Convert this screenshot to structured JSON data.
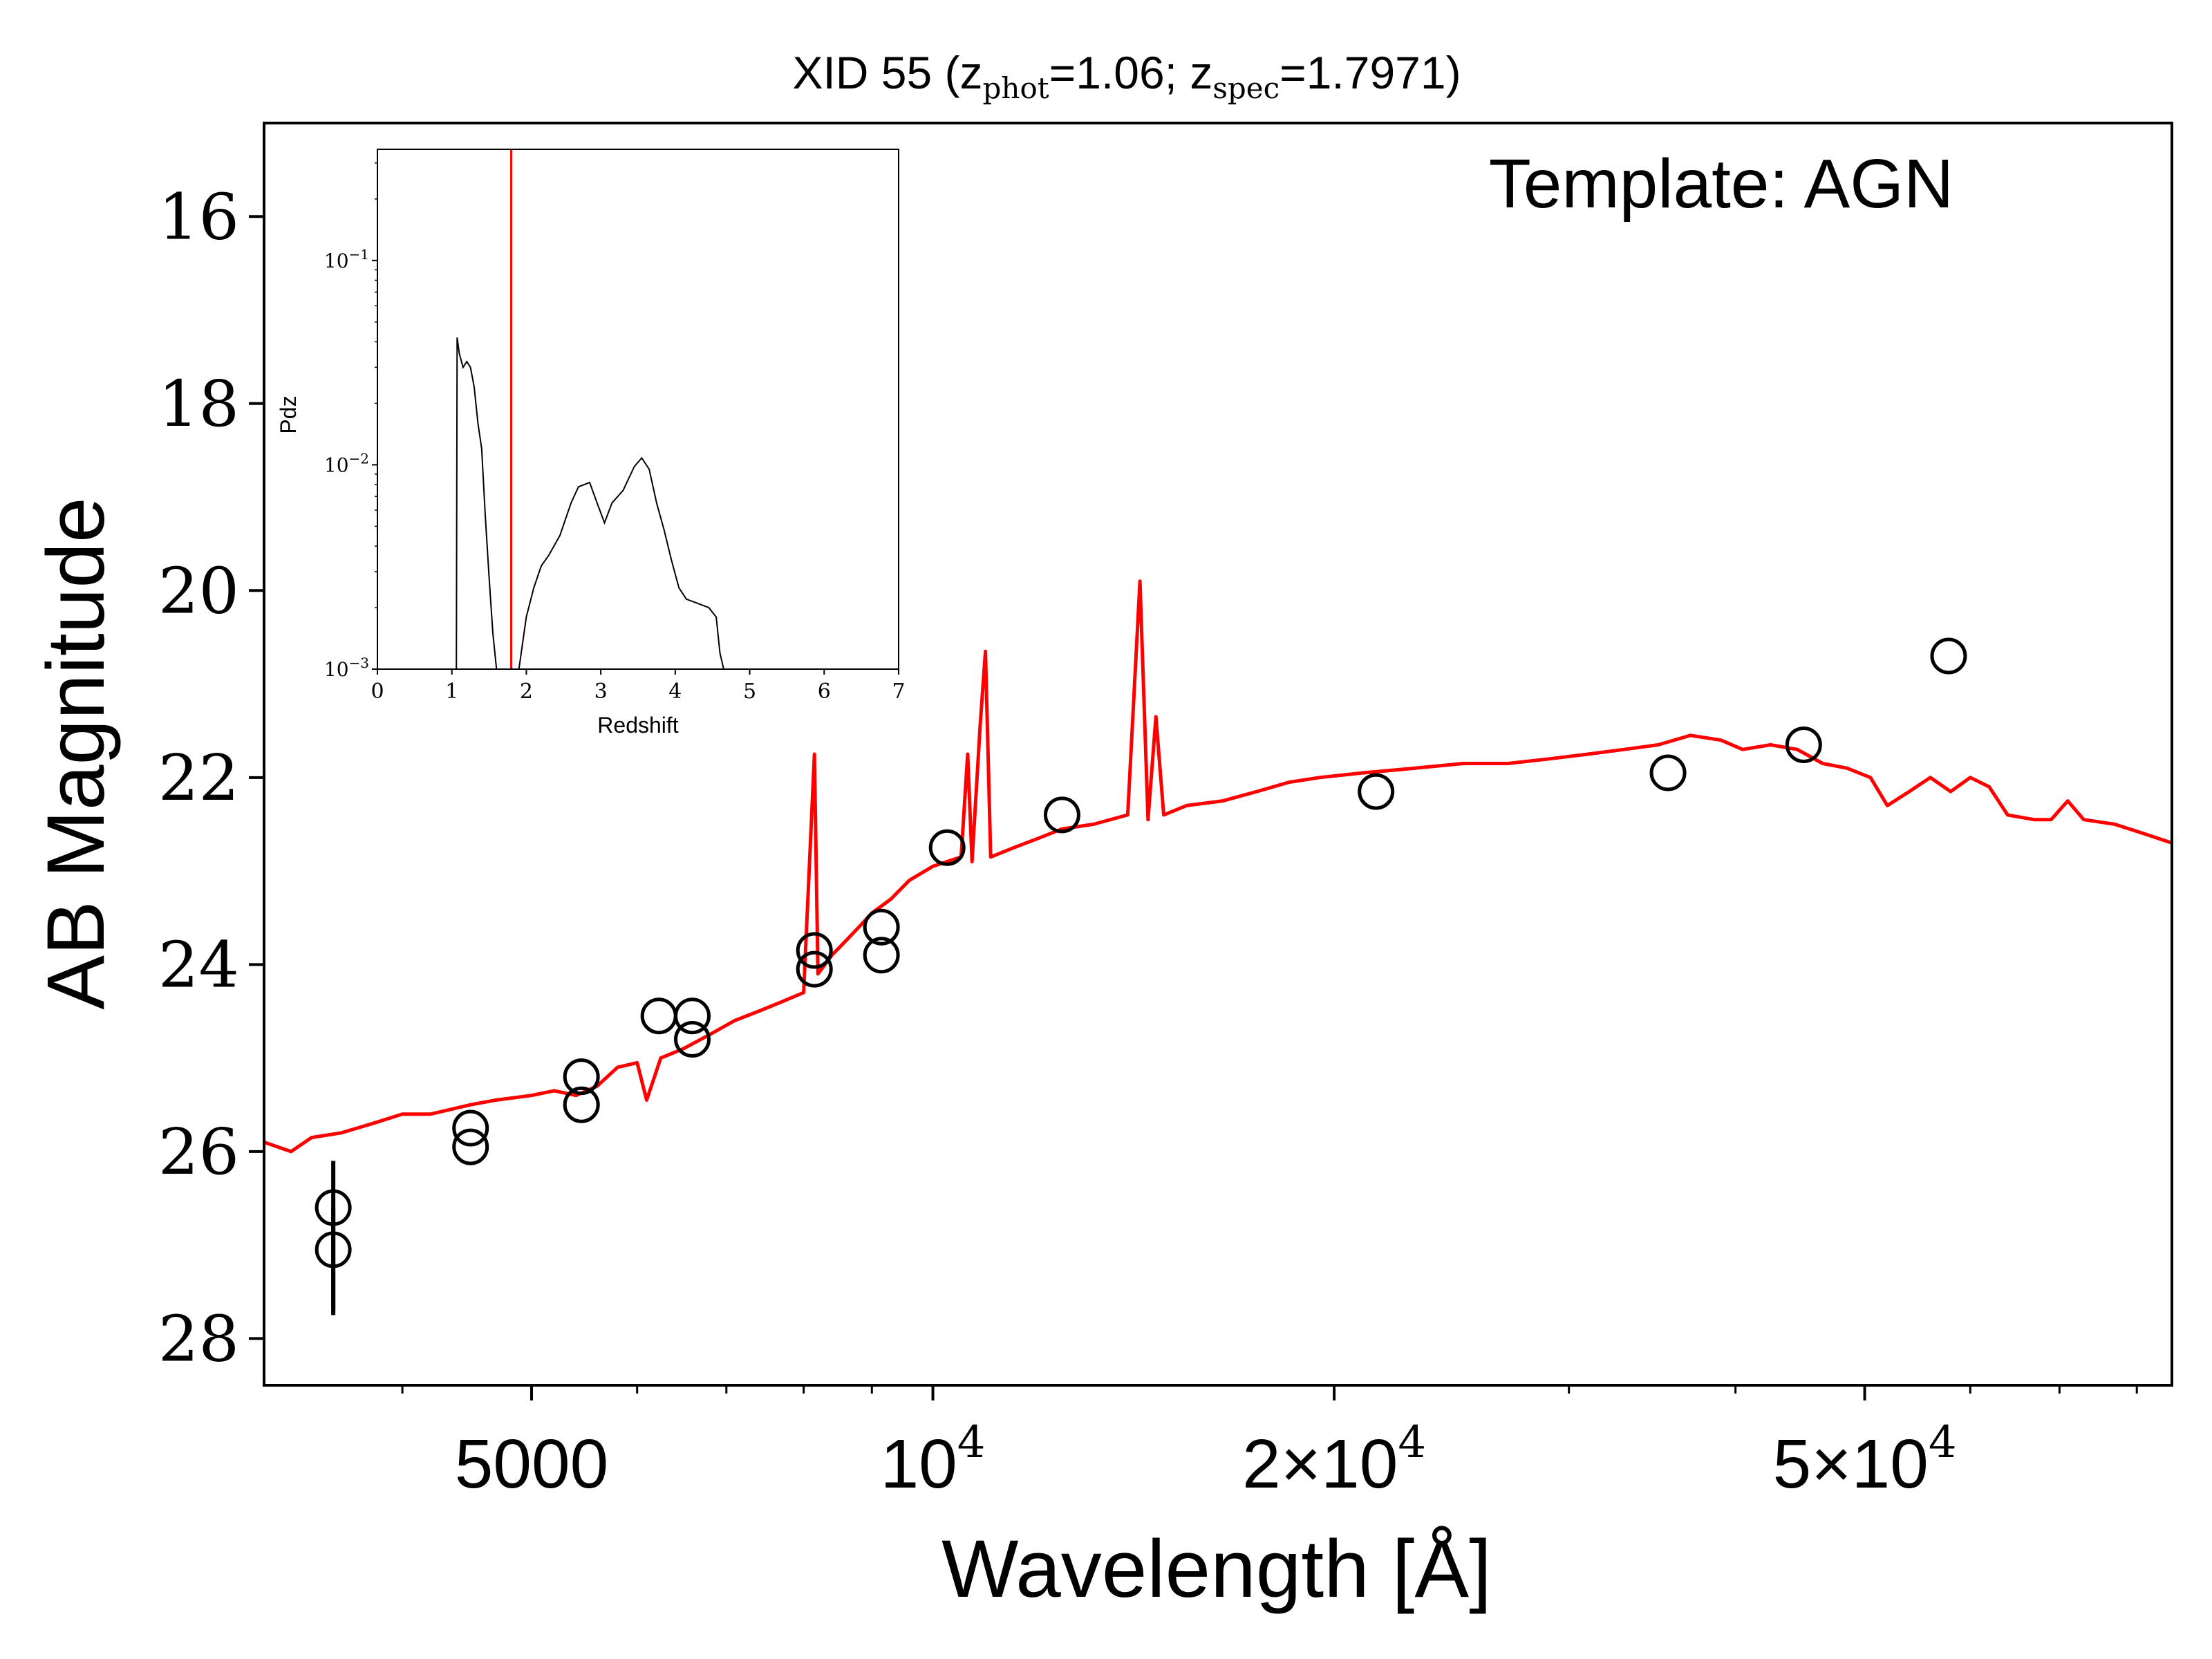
{
  "chart_data": [
    {
      "type": "scatter",
      "title": {
        "prefix": "XID 55 (z",
        "phot_sub": "phot",
        "phot_val": "=1.06; z",
        "spec_sub": "spec",
        "spec_val": "=1.7971)"
      },
      "annotation": "Template: AGN",
      "xlabel": "Wavelength [Å]",
      "ylabel": "AB Magnitude",
      "x_scale": "log",
      "xlim": [
        3150,
        85000
      ],
      "ylim": [
        28.5,
        15.0
      ],
      "y_inverted": true,
      "x_ticks": [
        {
          "value": 5000,
          "base": "5000",
          "exp": ""
        },
        {
          "value": 10000,
          "base": "10",
          "exp": "4"
        },
        {
          "value": 20000,
          "base": "2×10",
          "exp": "4"
        },
        {
          "value": 50000,
          "base": "5×10",
          "exp": "4"
        }
      ],
      "y_ticks": [
        "16",
        "18",
        "20",
        "22",
        "24",
        "26",
        "28"
      ],
      "photometry": [
        {
          "x": 3550,
          "y": 26.6,
          "yerr_low": 26.1,
          "yerr_high": 27.7
        },
        {
          "x": 3550,
          "y": 27.05,
          "yerr_low": 26.6,
          "yerr_high": 27.75
        },
        {
          "x": 4500,
          "y": 25.75
        },
        {
          "x": 4500,
          "y": 25.95
        },
        {
          "x": 5450,
          "y": 25.2
        },
        {
          "x": 5450,
          "y": 25.5
        },
        {
          "x": 6230,
          "y": 24.55
        },
        {
          "x": 6600,
          "y": 24.55
        },
        {
          "x": 6600,
          "y": 24.8
        },
        {
          "x": 8150,
          "y": 23.85
        },
        {
          "x": 8150,
          "y": 24.05
        },
        {
          "x": 9150,
          "y": 23.6
        },
        {
          "x": 9150,
          "y": 23.9
        },
        {
          "x": 10250,
          "y": 22.75
        },
        {
          "x": 12500,
          "y": 22.4
        },
        {
          "x": 21500,
          "y": 22.15
        },
        {
          "x": 35600,
          "y": 21.95
        },
        {
          "x": 45000,
          "y": 21.65
        },
        {
          "x": 57800,
          "y": 20.7
        }
      ],
      "sed_template": {
        "color": "#ff0000",
        "points": [
          [
            3150,
            25.9
          ],
          [
            3300,
            26.0
          ],
          [
            3420,
            25.85
          ],
          [
            3600,
            25.8
          ],
          [
            3800,
            25.7
          ],
          [
            4000,
            25.6
          ],
          [
            4200,
            25.6
          ],
          [
            4500,
            25.5
          ],
          [
            4700,
            25.45
          ],
          [
            5000,
            25.4
          ],
          [
            5200,
            25.35
          ],
          [
            5400,
            25.4
          ],
          [
            5600,
            25.3
          ],
          [
            5800,
            25.1
          ],
          [
            6000,
            25.05
          ],
          [
            6100,
            25.45
          ],
          [
            6250,
            25.0
          ],
          [
            6500,
            24.9
          ],
          [
            6800,
            24.75
          ],
          [
            7100,
            24.6
          ],
          [
            7400,
            24.5
          ],
          [
            7700,
            24.4
          ],
          [
            8000,
            24.3
          ],
          [
            8150,
            21.75
          ],
          [
            8200,
            24.1
          ],
          [
            8400,
            23.9
          ],
          [
            8600,
            23.75
          ],
          [
            8800,
            23.6
          ],
          [
            9000,
            23.45
          ],
          [
            9300,
            23.3
          ],
          [
            9600,
            23.1
          ],
          [
            10000,
            22.95
          ],
          [
            10500,
            22.85
          ],
          [
            10620,
            21.75
          ],
          [
            10700,
            22.9
          ],
          [
            10850,
            21.45
          ],
          [
            10950,
            20.65
          ],
          [
            11050,
            22.85
          ],
          [
            11500,
            22.75
          ],
          [
            12000,
            22.65
          ],
          [
            12500,
            22.55
          ],
          [
            13200,
            22.5
          ],
          [
            14000,
            22.4
          ],
          [
            14300,
            19.9
          ],
          [
            14500,
            22.45
          ],
          [
            14700,
            21.35
          ],
          [
            14900,
            22.4
          ],
          [
            15500,
            22.3
          ],
          [
            16500,
            22.25
          ],
          [
            17500,
            22.15
          ],
          [
            18500,
            22.05
          ],
          [
            19500,
            22.0
          ],
          [
            21000,
            21.95
          ],
          [
            23000,
            21.9
          ],
          [
            25000,
            21.85
          ],
          [
            27000,
            21.85
          ],
          [
            29000,
            21.8
          ],
          [
            31000,
            21.75
          ],
          [
            33000,
            21.7
          ],
          [
            35000,
            21.65
          ],
          [
            37000,
            21.55
          ],
          [
            39000,
            21.6
          ],
          [
            40500,
            21.7
          ],
          [
            42500,
            21.65
          ],
          [
            44500,
            21.7
          ],
          [
            46500,
            21.85
          ],
          [
            48500,
            21.9
          ],
          [
            50500,
            22.0
          ],
          [
            52000,
            22.3
          ],
          [
            54000,
            22.15
          ],
          [
            56000,
            22.0
          ],
          [
            58000,
            22.15
          ],
          [
            60000,
            22.0
          ],
          [
            62000,
            22.1
          ],
          [
            64000,
            22.4
          ],
          [
            67000,
            22.45
          ],
          [
            69000,
            22.45
          ],
          [
            71000,
            22.25
          ],
          [
            73000,
            22.45
          ],
          [
            77000,
            22.5
          ],
          [
            81000,
            22.6
          ],
          [
            85000,
            22.7
          ]
        ]
      }
    },
    {
      "type": "line",
      "xlabel": "Redshift",
      "ylabel": "Pdz",
      "y_scale": "log",
      "xlim": [
        0,
        7
      ],
      "ylim": [
        0.001,
        0.35
      ],
      "x_ticks": [
        "0",
        "1",
        "2",
        "3",
        "4",
        "5",
        "6",
        "7"
      ],
      "y_ticks": [
        {
          "value": 0.1,
          "base": "10",
          "exp": "−1"
        },
        {
          "value": 0.01,
          "base": "10",
          "exp": "−2"
        },
        {
          "value": 0.001,
          "base": "10",
          "exp": "−3"
        }
      ],
      "z_spec_line": {
        "x": 1.7971,
        "color": "#ff0000"
      },
      "pdz": [
        [
          1.06,
          0.001
        ],
        [
          1.07,
          0.042
        ],
        [
          1.1,
          0.035
        ],
        [
          1.15,
          0.03
        ],
        [
          1.2,
          0.032
        ],
        [
          1.25,
          0.03
        ],
        [
          1.3,
          0.024
        ],
        [
          1.35,
          0.016
        ],
        [
          1.4,
          0.012
        ],
        [
          1.45,
          0.0055
        ],
        [
          1.5,
          0.0028
        ],
        [
          1.55,
          0.0015
        ],
        [
          1.6,
          0.001
        ],
        null,
        [
          1.9,
          0.001
        ],
        [
          2.0,
          0.0018
        ],
        [
          2.1,
          0.0025
        ],
        [
          2.2,
          0.0032
        ],
        [
          2.3,
          0.0036
        ],
        [
          2.45,
          0.0045
        ],
        [
          2.6,
          0.0065
        ],
        [
          2.7,
          0.0078
        ],
        [
          2.85,
          0.0082
        ],
        [
          2.95,
          0.0065
        ],
        [
          3.05,
          0.0052
        ],
        [
          3.15,
          0.0065
        ],
        [
          3.3,
          0.0075
        ],
        [
          3.45,
          0.0098
        ],
        [
          3.55,
          0.0108
        ],
        [
          3.65,
          0.0095
        ],
        [
          3.75,
          0.0065
        ],
        [
          3.85,
          0.0048
        ],
        [
          3.95,
          0.0034
        ],
        [
          4.05,
          0.0025
        ],
        [
          4.15,
          0.0022
        ],
        [
          4.3,
          0.0021
        ],
        [
          4.45,
          0.002
        ],
        [
          4.55,
          0.0018
        ],
        [
          4.6,
          0.0012
        ],
        [
          4.65,
          0.001
        ]
      ]
    }
  ]
}
